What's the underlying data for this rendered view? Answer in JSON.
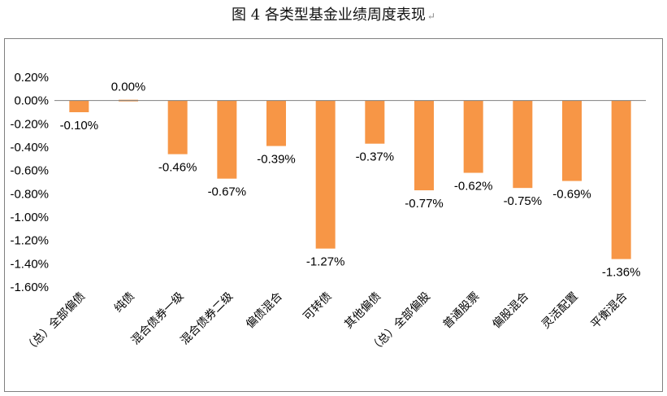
{
  "title": "图 4  各类型基金业绩周度表现",
  "title_mark": "↵",
  "colors": {
    "bar": "#F79646",
    "axis": "#808080"
  },
  "chart_data": {
    "type": "bar",
    "title": "图 4  各类型基金业绩周度表现",
    "xlabel": "",
    "ylabel": "",
    "ylim": [
      -1.6,
      0.2
    ],
    "yticks": [
      "0.20%",
      "0.00%",
      "-0.20%",
      "-0.40%",
      "-0.60%",
      "-0.80%",
      "-1.00%",
      "-1.20%",
      "-1.40%",
      "-1.60%"
    ],
    "categories": [
      "（总）全部偏债",
      "纯债",
      "混合债券一级",
      "混合债券二级",
      "偏债混合",
      "可转债",
      "其他偏债",
      "（总）全部偏股",
      "普通股票",
      "偏股混合",
      "灵活配置",
      "平衡混合"
    ],
    "values": [
      -0.1,
      0.0,
      -0.46,
      -0.67,
      -0.39,
      -1.27,
      -0.37,
      -0.77,
      -0.62,
      -0.75,
      -0.69,
      -1.36
    ],
    "data_labels": [
      "-0.10%",
      "0.00%",
      "-0.46%",
      "-0.67%",
      "-0.39%",
      "-1.27%",
      "-0.37%",
      "-0.77%",
      "-0.62%",
      "-0.75%",
      "-0.69%",
      "-1.36%"
    ],
    "grid": false,
    "legend": "none"
  }
}
